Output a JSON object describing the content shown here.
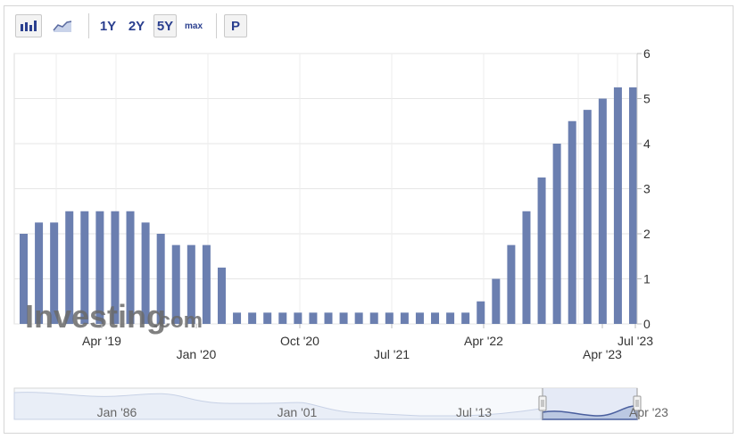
{
  "toolbar": {
    "bar_chart_icon": "bar-chart-icon",
    "line_chart_icon": "line-chart-icon",
    "range_1y": "1Y",
    "range_2y": "2Y",
    "range_5y": "5Y",
    "range_max": "max",
    "p_button": "P",
    "active_range": "5Y"
  },
  "watermark": {
    "brand": "Investing",
    "suffix": ".com"
  },
  "navigator": {
    "labels": [
      "Jan '86",
      "Jan '01",
      "Jul '13",
      "Apr '23"
    ]
  },
  "colors": {
    "bar": "#6b7fb0",
    "grid": "#e6e6e6",
    "toolbar_text": "#2a3f8f"
  },
  "chart_data": {
    "type": "bar",
    "ylim": [
      0,
      6
    ],
    "yticks": [
      0,
      1,
      2,
      3,
      4,
      5,
      6
    ],
    "x_tick_labels": [
      "Apr '19",
      "Jan '20",
      "Oct '20",
      "Jul '21",
      "Apr '22",
      "Apr '23",
      "Jul '23"
    ],
    "values": [
      2.0,
      2.25,
      2.25,
      2.5,
      2.5,
      2.5,
      2.5,
      2.5,
      2.25,
      2.0,
      1.75,
      1.75,
      1.75,
      1.25,
      0.25,
      0.25,
      0.25,
      0.25,
      0.25,
      0.25,
      0.25,
      0.25,
      0.25,
      0.25,
      0.25,
      0.25,
      0.25,
      0.25,
      0.25,
      0.25,
      0.5,
      1.0,
      1.75,
      2.5,
      3.25,
      4.0,
      4.5,
      4.75,
      5.0,
      5.25,
      5.25
    ],
    "grid": true
  }
}
